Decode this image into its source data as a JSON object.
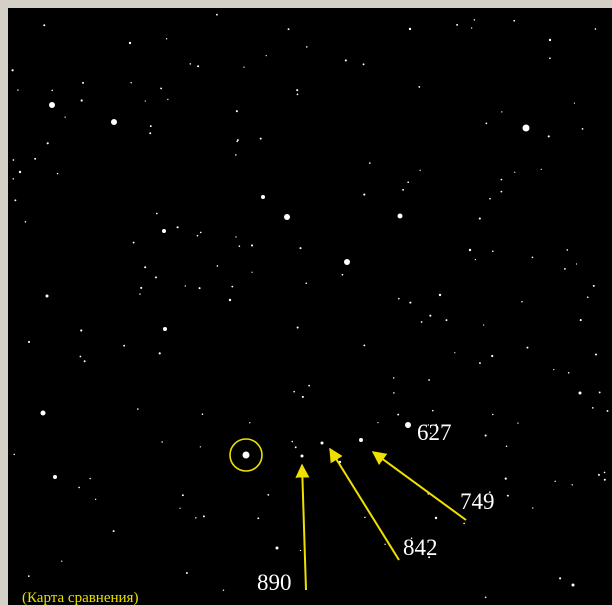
{
  "labels": [
    "627",
    "749",
    "842",
    "890"
  ],
  "caption": "(Карта сравнения)"
}
